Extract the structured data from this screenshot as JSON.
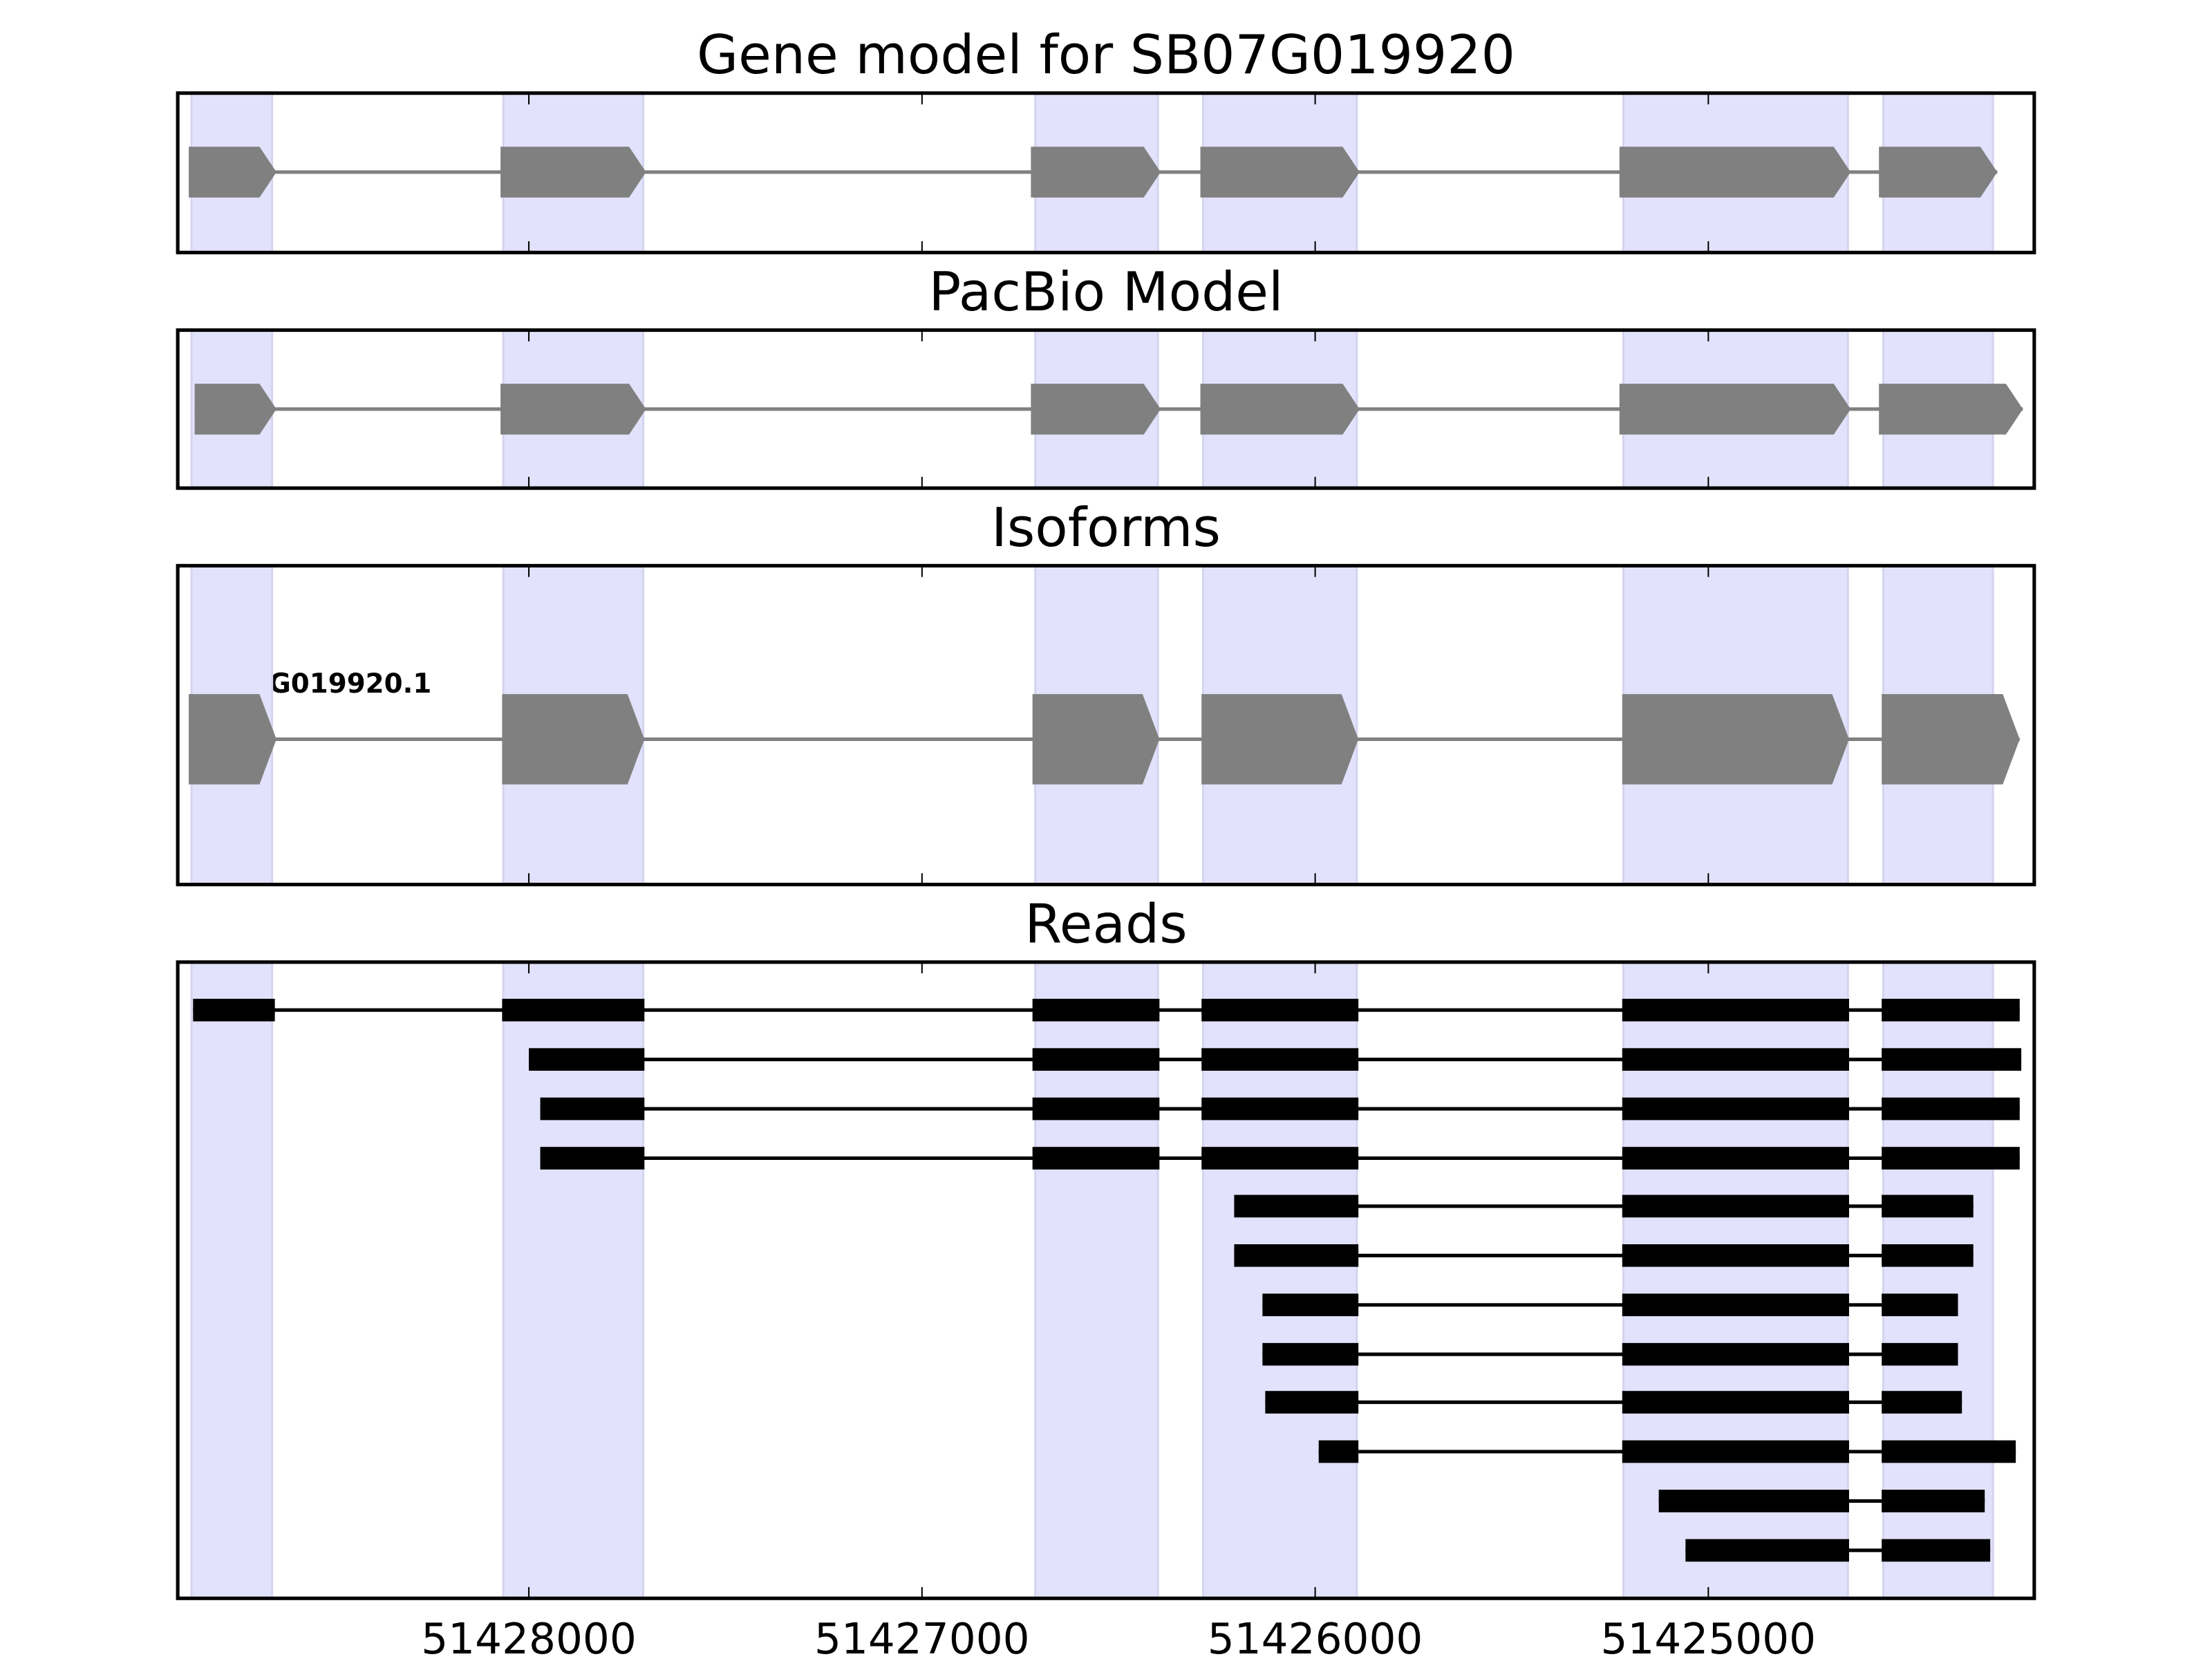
{
  "chart_data": {
    "type": "gene-track",
    "x_axis": {
      "range": [
        51428893,
        51424171
      ],
      "ticks": [
        51428000,
        51427000,
        51426000,
        51425000
      ],
      "tick_labels": [
        "51428000",
        "51427000",
        "51426000",
        "51425000"
      ],
      "direction": "decreasing"
    },
    "shaded_regions": [
      [
        51428858,
        51428653
      ],
      [
        51428065,
        51427709
      ],
      [
        51426712,
        51426400
      ],
      [
        51426285,
        51425894
      ],
      [
        51425216,
        51424645
      ],
      [
        51424555,
        51424276
      ]
    ],
    "colors": {
      "shade": "#e2e2fc",
      "exon": "#808080",
      "read": "#000000"
    },
    "panels": [
      {
        "title": "Gene model for SB07G019920",
        "style": "arrow",
        "exons": [
          [
            51428865,
            51428642
          ],
          [
            51428072,
            51427702
          ],
          [
            51426723,
            51426393
          ],
          [
            51426292,
            51425887
          ],
          [
            51425226,
            51424638
          ],
          [
            51424566,
            51424265
          ]
        ]
      },
      {
        "title": "PacBio Model",
        "style": "arrow",
        "exons": [
          [
            51428850,
            51428642
          ],
          [
            51428072,
            51427702
          ],
          [
            51426723,
            51426393
          ],
          [
            51426292,
            51425887
          ],
          [
            51425226,
            51424638
          ],
          [
            51424566,
            51424200
          ]
        ]
      },
      {
        "title": "Isoforms",
        "style": "arrow-large",
        "label": "SB07G019920.1",
        "exons": [
          [
            51428865,
            51428642
          ],
          [
            51428068,
            51427706
          ],
          [
            51426719,
            51426396
          ],
          [
            51426289,
            51425890
          ],
          [
            51425219,
            51424642
          ],
          [
            51424559,
            51424208
          ]
        ]
      },
      {
        "title": "Reads",
        "style": "reads",
        "reads": [
          [
            [
              51428854,
              51428646
            ],
            [
              51428068,
              51427706
            ],
            [
              51426719,
              51426396
            ],
            [
              51426289,
              51425890
            ],
            [
              51425219,
              51424642
            ],
            [
              51424559,
              51424208
            ]
          ],
          [
            [
              51428000,
              51427706
            ],
            [
              51426719,
              51426396
            ],
            [
              51426289,
              51425890
            ],
            [
              51425219,
              51424642
            ],
            [
              51424559,
              51424204
            ]
          ],
          [
            [
              51427971,
              51427706
            ],
            [
              51426719,
              51426396
            ],
            [
              51426289,
              51425890
            ],
            [
              51425219,
              51424642
            ],
            [
              51424559,
              51424208
            ]
          ],
          [
            [
              51427971,
              51427706
            ],
            [
              51426719,
              51426396
            ],
            [
              51426289,
              51425890
            ],
            [
              51425219,
              51424642
            ],
            [
              51424559,
              51424208
            ]
          ],
          [
            [
              51426206,
              51425890
            ],
            [
              51425219,
              51424642
            ],
            [
              51424559,
              51424326
            ]
          ],
          [
            [
              51426206,
              51425890
            ],
            [
              51425219,
              51424642
            ],
            [
              51424559,
              51424326
            ]
          ],
          [
            [
              51426134,
              51425890
            ],
            [
              51425219,
              51424642
            ],
            [
              51424559,
              51424365
            ]
          ],
          [
            [
              51426134,
              51425890
            ],
            [
              51425219,
              51424642
            ],
            [
              51424559,
              51424365
            ]
          ],
          [
            [
              51426127,
              51425890
            ],
            [
              51425219,
              51424642
            ],
            [
              51424559,
              51424355
            ]
          ],
          [
            [
              51425991,
              51425890
            ],
            [
              51425219,
              51424642
            ],
            [
              51424559,
              51424218
            ]
          ],
          [
            [
              51425126,
              51424642
            ],
            [
              51424559,
              51424297
            ]
          ],
          [
            [
              51425058,
              51424642
            ],
            [
              51424559,
              51424283
            ]
          ]
        ]
      }
    ]
  }
}
